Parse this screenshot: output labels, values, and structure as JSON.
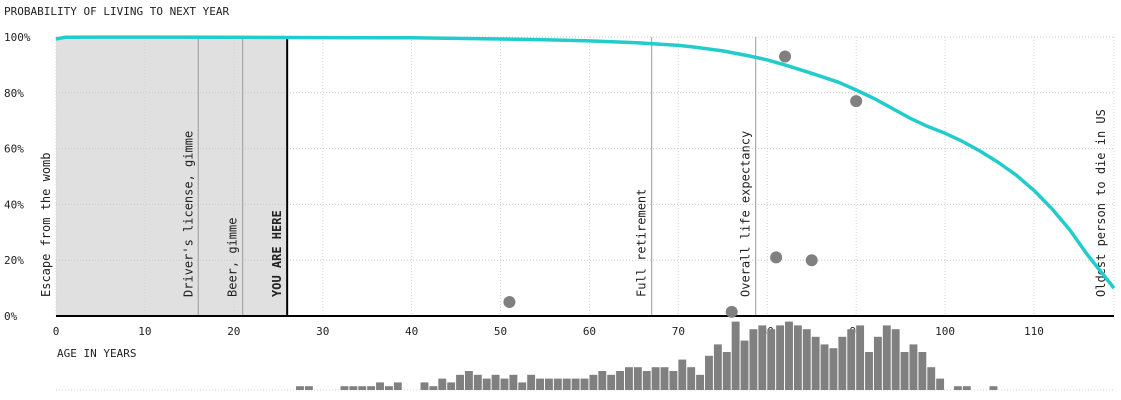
{
  "chart_data": {
    "type": "line",
    "title": "PROBABILITY OF LIVING TO NEXT YEAR",
    "xlabel": "AGE IN YEARS",
    "ylabel": "",
    "xlim": [
      0,
      119
    ],
    "ylim": [
      0,
      100
    ],
    "x_ticks": [
      0,
      10,
      20,
      30,
      40,
      50,
      60,
      70,
      80,
      90,
      100,
      110
    ],
    "y_ticks": [
      0,
      20,
      40,
      60,
      80,
      100
    ],
    "y_tick_labels": [
      "0%",
      "20%",
      "40%",
      "60%",
      "80%",
      "100%"
    ],
    "grid": "dotted horizontal and vertical",
    "curve_color": "#22cccc",
    "shade_color": "#e0e0e0",
    "point_color": "#808080",
    "histogram_color": "#808080",
    "shaded_range": [
      0,
      26
    ],
    "series": [
      {
        "x": [
          0,
          1,
          5,
          10,
          20,
          30,
          40,
          50,
          55,
          60,
          65,
          70,
          72,
          75,
          78,
          80,
          82,
          85,
          88,
          90,
          92,
          94,
          96,
          98,
          100,
          102,
          104,
          106,
          108,
          110,
          112,
          114,
          116,
          119
        ],
        "values": [
          99.3,
          99.9,
          99.95,
          99.95,
          99.9,
          99.8,
          99.7,
          99.3,
          99.0,
          98.6,
          98.0,
          97.0,
          96.3,
          95.0,
          93.2,
          91.8,
          90.0,
          87.0,
          83.8,
          81.0,
          78.0,
          74.5,
          71.0,
          68.0,
          65.5,
          62.5,
          59.0,
          55.0,
          50.5,
          45.0,
          38.5,
          31.0,
          22.0,
          10.0
        ]
      }
    ],
    "points": [
      {
        "x": 51,
        "y": 5
      },
      {
        "x": 76,
        "y": 1.5
      },
      {
        "x": 81,
        "y": 21
      },
      {
        "x": 82,
        "y": 93
      },
      {
        "x": 85,
        "y": 20
      },
      {
        "x": 90,
        "y": 77
      }
    ],
    "markers": [
      {
        "age": 0,
        "label": "Escape from the womb",
        "emphasis": false,
        "line": false
      },
      {
        "age": 16,
        "label": "Driver's license, gimme",
        "emphasis": false,
        "line": true
      },
      {
        "age": 21,
        "label": "Beer, gimme",
        "emphasis": false,
        "line": true
      },
      {
        "age": 26,
        "label": "YOU ARE HERE",
        "emphasis": true,
        "line": true
      },
      {
        "age": 67,
        "label": "Full retirement",
        "emphasis": false,
        "line": true
      },
      {
        "age": 78.7,
        "label": "Overall life expectancy",
        "emphasis": false,
        "line": true
      },
      {
        "age": 119,
        "label": "Oldest person to die in US",
        "emphasis": false,
        "line": false
      }
    ],
    "histogram": {
      "ages": [
        27,
        28,
        29,
        30,
        31,
        32,
        33,
        34,
        35,
        36,
        37,
        38,
        39,
        40,
        41,
        42,
        43,
        44,
        45,
        46,
        47,
        48,
        49,
        50,
        51,
        52,
        53,
        54,
        55,
        56,
        57,
        58,
        59,
        60,
        61,
        62,
        63,
        64,
        65,
        66,
        67,
        68,
        69,
        70,
        71,
        72,
        73,
        74,
        75,
        76,
        77,
        78,
        79,
        80,
        81,
        82,
        83,
        84,
        85,
        86,
        87,
        88,
        89,
        90,
        91,
        92,
        93,
        94,
        95,
        96,
        97,
        98,
        99,
        100,
        101,
        102,
        103,
        104,
        105
      ],
      "values": [
        1,
        1,
        0,
        0,
        0,
        1,
        1,
        1,
        1,
        2,
        1,
        2,
        0,
        0,
        2,
        1,
        3,
        2,
        4,
        5,
        4,
        3,
        4,
        3,
        4,
        2,
        4,
        3,
        3,
        3,
        3,
        3,
        3,
        4,
        5,
        4,
        5,
        6,
        6,
        5,
        6,
        6,
        5,
        8,
        6,
        4,
        9,
        12,
        10,
        18,
        13,
        16,
        17,
        16,
        17,
        18,
        17,
        16,
        14,
        12,
        11,
        14,
        16,
        17,
        10,
        14,
        17,
        16,
        10,
        12,
        10,
        6,
        3,
        0,
        1,
        1,
        0,
        0,
        1
      ]
    }
  }
}
